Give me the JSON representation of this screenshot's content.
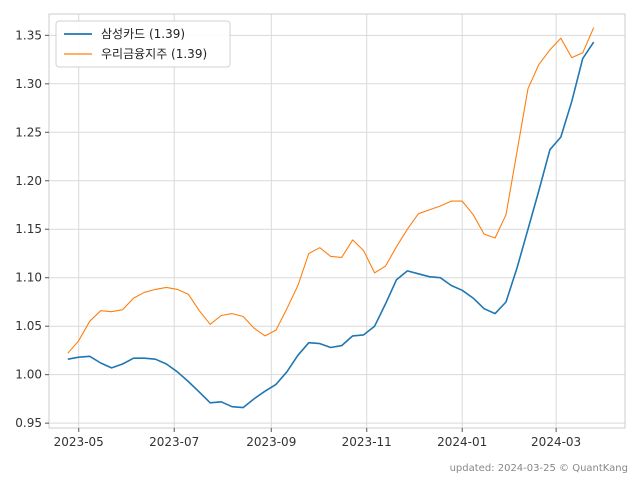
{
  "footer_text": "updated: 2024-03-25 © QuantKang",
  "chart_data": {
    "type": "line",
    "title": "",
    "xlabel": "",
    "ylabel": "",
    "grid": true,
    "legend_position": "top-left",
    "ylim": [
      0.945,
      1.372
    ],
    "xlim": [
      "2023-04-12",
      "2024-04-14"
    ],
    "yticks": [
      "0.95",
      "1.00",
      "1.05",
      "1.10",
      "1.15",
      "1.20",
      "1.25",
      "1.30",
      "1.35"
    ],
    "xticks": [
      {
        "date": "2023-05-01",
        "label": "2023-05"
      },
      {
        "date": "2023-07-01",
        "label": "2023-07"
      },
      {
        "date": "2023-09-01",
        "label": "2023-09"
      },
      {
        "date": "2023-11-01",
        "label": "2023-11"
      },
      {
        "date": "2024-01-01",
        "label": "2024-01"
      },
      {
        "date": "2024-03-01",
        "label": "2024-03"
      }
    ],
    "series": [
      {
        "name": "삼성카드 (1.39)",
        "color": "#1f77b4",
        "points": [
          [
            "2023-04-24",
            1.016
          ],
          [
            "2023-05-01",
            1.018
          ],
          [
            "2023-05-08",
            1.019
          ],
          [
            "2023-05-15",
            1.012
          ],
          [
            "2023-05-22",
            1.007
          ],
          [
            "2023-05-29",
            1.011
          ],
          [
            "2023-06-05",
            1.017
          ],
          [
            "2023-06-12",
            1.017
          ],
          [
            "2023-06-19",
            1.016
          ],
          [
            "2023-06-26",
            1.011
          ],
          [
            "2023-07-03",
            1.003
          ],
          [
            "2023-07-10",
            0.993
          ],
          [
            "2023-07-17",
            0.982
          ],
          [
            "2023-07-24",
            0.971
          ],
          [
            "2023-07-31",
            0.972
          ],
          [
            "2023-08-07",
            0.967
          ],
          [
            "2023-08-14",
            0.966
          ],
          [
            "2023-08-21",
            0.975
          ],
          [
            "2023-08-28",
            0.983
          ],
          [
            "2023-09-04",
            0.99
          ],
          [
            "2023-09-11",
            1.003
          ],
          [
            "2023-09-18",
            1.02
          ],
          [
            "2023-09-25",
            1.033
          ],
          [
            "2023-10-02",
            1.032
          ],
          [
            "2023-10-09",
            1.028
          ],
          [
            "2023-10-16",
            1.03
          ],
          [
            "2023-10-23",
            1.04
          ],
          [
            "2023-10-30",
            1.041
          ],
          [
            "2023-11-06",
            1.05
          ],
          [
            "2023-11-13",
            1.073
          ],
          [
            "2023-11-20",
            1.098
          ],
          [
            "2023-11-27",
            1.107
          ],
          [
            "2023-12-04",
            1.104
          ],
          [
            "2023-12-11",
            1.101
          ],
          [
            "2023-12-18",
            1.1
          ],
          [
            "2023-12-25",
            1.092
          ],
          [
            "2024-01-01",
            1.087
          ],
          [
            "2024-01-08",
            1.079
          ],
          [
            "2024-01-15",
            1.068
          ],
          [
            "2024-01-22",
            1.063
          ],
          [
            "2024-01-29",
            1.075
          ],
          [
            "2024-02-05",
            1.11
          ],
          [
            "2024-02-12",
            1.15
          ],
          [
            "2024-02-19",
            1.19
          ],
          [
            "2024-02-26",
            1.232
          ],
          [
            "2024-03-04",
            1.245
          ],
          [
            "2024-03-11",
            1.282
          ],
          [
            "2024-03-18",
            1.326
          ],
          [
            "2024-03-25",
            1.343
          ]
        ]
      },
      {
        "name": "우리금융지주 (1.39)",
        "color": "#ff7f0e",
        "points": [
          [
            "2023-04-24",
            1.022
          ],
          [
            "2023-05-01",
            1.035
          ],
          [
            "2023-05-08",
            1.055
          ],
          [
            "2023-05-15",
            1.066
          ],
          [
            "2023-05-22",
            1.065
          ],
          [
            "2023-05-29",
            1.067
          ],
          [
            "2023-06-05",
            1.079
          ],
          [
            "2023-06-12",
            1.085
          ],
          [
            "2023-06-19",
            1.088
          ],
          [
            "2023-06-26",
            1.09
          ],
          [
            "2023-07-03",
            1.088
          ],
          [
            "2023-07-10",
            1.083
          ],
          [
            "2023-07-17",
            1.066
          ],
          [
            "2023-07-24",
            1.052
          ],
          [
            "2023-07-31",
            1.061
          ],
          [
            "2023-08-07",
            1.063
          ],
          [
            "2023-08-14",
            1.06
          ],
          [
            "2023-08-21",
            1.048
          ],
          [
            "2023-08-28",
            1.04
          ],
          [
            "2023-09-04",
            1.046
          ],
          [
            "2023-09-11",
            1.068
          ],
          [
            "2023-09-18",
            1.092
          ],
          [
            "2023-09-25",
            1.125
          ],
          [
            "2023-10-02",
            1.131
          ],
          [
            "2023-10-09",
            1.122
          ],
          [
            "2023-10-16",
            1.121
          ],
          [
            "2023-10-23",
            1.139
          ],
          [
            "2023-10-30",
            1.128
          ],
          [
            "2023-11-06",
            1.105
          ],
          [
            "2023-11-13",
            1.112
          ],
          [
            "2023-11-20",
            1.132
          ],
          [
            "2023-11-27",
            1.15
          ],
          [
            "2023-12-04",
            1.166
          ],
          [
            "2023-12-11",
            1.17
          ],
          [
            "2023-12-18",
            1.174
          ],
          [
            "2023-12-25",
            1.179
          ],
          [
            "2024-01-01",
            1.179
          ],
          [
            "2024-01-08",
            1.165
          ],
          [
            "2024-01-15",
            1.145
          ],
          [
            "2024-01-22",
            1.141
          ],
          [
            "2024-01-29",
            1.165
          ],
          [
            "2024-02-05",
            1.23
          ],
          [
            "2024-02-12",
            1.295
          ],
          [
            "2024-02-19",
            1.32
          ],
          [
            "2024-02-26",
            1.335
          ],
          [
            "2024-03-04",
            1.347
          ],
          [
            "2024-03-11",
            1.327
          ],
          [
            "2024-03-18",
            1.332
          ],
          [
            "2024-03-25",
            1.358
          ]
        ]
      }
    ]
  }
}
